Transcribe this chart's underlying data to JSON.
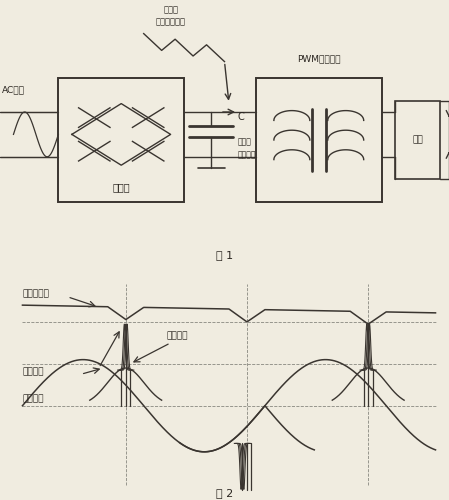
{
  "fig1_title": "图 1",
  "fig2_title": "图 2",
  "label_ac": "AC输入",
  "label_rectifier": "整流器",
  "label_capacitor_c": "C",
  "label_large_cap": "大容量\n滤波电容",
  "label_pwm": "PWM开关电源",
  "label_load": "负载",
  "label_dc_after": "整流后\n电容上的直流",
  "label_waveform_drop": "波形下沿",
  "label_rectified_dc": "整流后直流",
  "label_peak_voltage": "线路电压",
  "label_peak_current": "线路电流",
  "bg_color": "#f0ece0",
  "line_color": "#3a3530",
  "text_color": "#2a2520"
}
